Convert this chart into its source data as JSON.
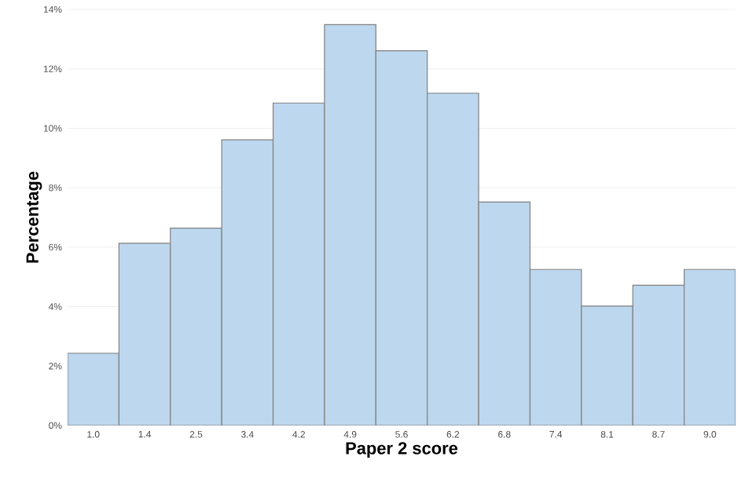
{
  "chart_data": {
    "type": "bar",
    "xlabel": "Paper 2 score",
    "ylabel": "Percentage",
    "categories": [
      "1.0",
      "1.4",
      "2.5",
      "3.4",
      "4.2",
      "4.9",
      "5.6",
      "6.2",
      "6.8",
      "7.4",
      "8.1",
      "8.7",
      "9.0"
    ],
    "values": [
      2.43,
      6.13,
      6.64,
      9.61,
      10.85,
      13.49,
      12.61,
      11.18,
      7.52,
      5.25,
      4.02,
      4.72,
      5.25
    ],
    "color": "#bdd7ee",
    "ylim": [
      0,
      14
    ],
    "yticks": [
      {
        "value": 0,
        "label": "0%"
      },
      {
        "value": 2,
        "label": "2%"
      },
      {
        "value": 4,
        "label": "4%"
      },
      {
        "value": 6,
        "label": "6%"
      },
      {
        "value": 8,
        "label": "8%"
      },
      {
        "value": 10,
        "label": "10%"
      },
      {
        "value": 12,
        "label": "12%"
      },
      {
        "value": 14,
        "label": "14%"
      }
    ],
    "grid": "y"
  }
}
